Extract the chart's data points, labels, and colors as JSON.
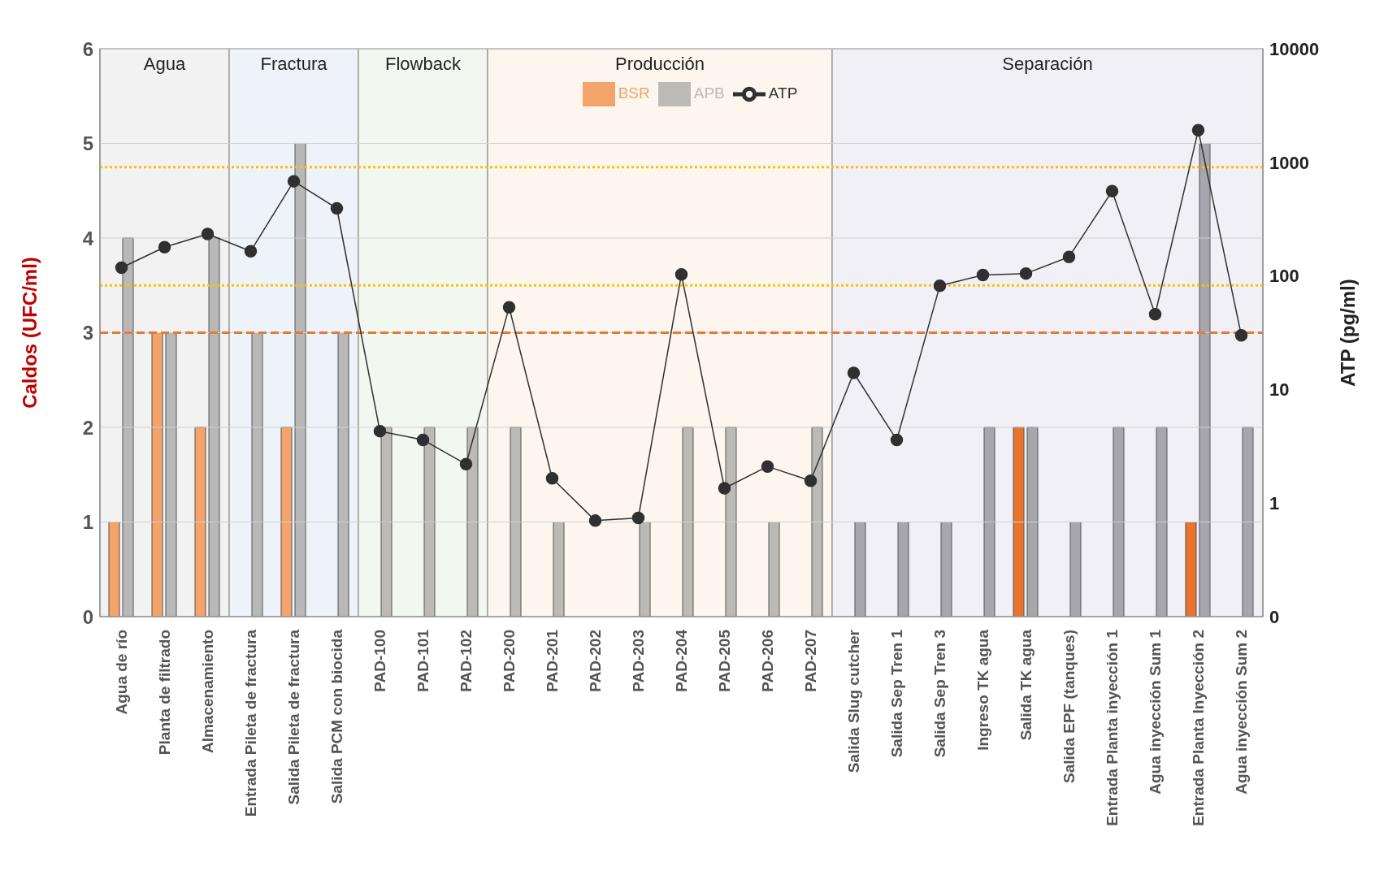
{
  "chart_data": {
    "type": "bar",
    "ylabel": "Caldos (UFC/ml)",
    "y2label": "ATP (pg/ml)",
    "categories": [
      "Agua de río",
      "Planta de filtrado",
      "Almacenamiento",
      "Entrada Pileta de fractura",
      "Salida Pileta de fractura",
      "Salida PCM con biocida",
      "PAD-100",
      "PAD-101",
      "PAD-102",
      "PAD-200",
      "PAD-201",
      "PAD-202",
      "PAD-203",
      "PAD-204",
      "PAD-205",
      "PAD-206",
      "PAD-207",
      "Salida Slug cutcher",
      "Salida Sep Tren 1",
      "Salida Sep Tren 3",
      "Ingreso TK agua",
      "Salida TK agua",
      "Salida EPF (tanques)",
      "Entrada Planta inyección 1",
      "Agua inyección Sum 1",
      "Entrada Planta Inyección 2",
      "Agua inyección Sum 2"
    ],
    "series": [
      {
        "name": "BSR",
        "color": "#f4a46a",
        "colors": [
          "#f4a46a",
          "#f4a46a",
          "#f4a46a",
          "#f4a46a",
          "#f4a46a",
          "#f4a46a",
          "#f4a46a",
          "#f4a46a",
          "#f4a46a",
          "#f4a46a",
          "#f4a46a",
          "#f4a46a",
          "#f4a46a",
          "#f4a46a",
          "#f4a46a",
          "#f4a46a",
          "#f4a46a",
          "#e8742e",
          "#e8742e",
          "#e8742e",
          "#e8742e",
          "#e8742e",
          "#e8742e",
          "#e8742e",
          "#e8742e",
          "#e8742e",
          "#e8742e"
        ],
        "values": [
          1,
          3,
          2,
          null,
          2,
          null,
          null,
          null,
          null,
          null,
          null,
          null,
          null,
          null,
          null,
          null,
          null,
          null,
          null,
          null,
          null,
          2,
          null,
          null,
          null,
          1,
          null
        ]
      },
      {
        "name": "APB",
        "color": "#bdbab5",
        "colors": [
          "#b8b8b8",
          "#b8b8b8",
          "#b8b8b8",
          "#b8b8b8",
          "#b8b8b8",
          "#b8b8b8",
          "#bdbab5",
          "#bdbab5",
          "#bdbab5",
          "#bdbab5",
          "#bdbab5",
          "#bdbab5",
          "#bdbab5",
          "#bdbab5",
          "#bdbab5",
          "#bdbab5",
          "#bdbab5",
          "#a7a5ad",
          "#a7a5ad",
          "#a7a5ad",
          "#a7a5ad",
          "#a7a5ad",
          "#a7a5ad",
          "#a7a5ad",
          "#a7a5ad",
          "#a7a5ad",
          "#a7a5ad"
        ],
        "values": [
          4,
          3,
          4,
          3,
          5,
          3,
          2,
          2,
          2,
          2,
          1,
          null,
          1,
          2,
          2,
          1,
          2,
          1,
          1,
          1,
          2,
          2,
          1,
          2,
          2,
          5,
          2
        ]
      },
      {
        "name": "ATP",
        "type": "line",
        "axis": "y2",
        "color": "#303030",
        "values": [
          118,
          179,
          234,
          165,
          681,
          393,
          4.3,
          3.6,
          2.2,
          53,
          1.65,
          0.7,
          0.74,
          103,
          1.35,
          2.1,
          1.57,
          14,
          3.6,
          82,
          102,
          105,
          147,
          557,
          46,
          1915,
          30
        ]
      }
    ],
    "ylim": [
      0,
      6
    ],
    "yticks": [
      0,
      1,
      2,
      3,
      4,
      5,
      6
    ],
    "y2lim": [
      0.1,
      10000
    ],
    "y2ticks": [
      {
        "value": 0.1,
        "label": "0"
      },
      1,
      10,
      100,
      1000,
      10000
    ],
    "log": "y2",
    "bands": [
      {
        "axis": "x",
        "from": "Agua de río",
        "to": "Almacenamiento",
        "label": "Agua",
        "color": "#f2f2f2"
      },
      {
        "axis": "x",
        "from": "Entrada Pileta de fractura",
        "to": "Salida PCM con biocida",
        "label": "Fractura",
        "color": "#eef3fa"
      },
      {
        "axis": "x",
        "from": "PAD-100",
        "to": "PAD-102",
        "label": "Flowback",
        "color": "#f2f8ef"
      },
      {
        "axis": "x",
        "from": "PAD-200",
        "to": "PAD-207",
        "label": "Producción",
        "color": "#fcf6ef"
      },
      {
        "axis": "x",
        "from": "Salida Slug cutcher",
        "to": "Agua inyección Sum 2",
        "label": "Separación",
        "color": "#f2f0f7"
      }
    ],
    "ref_lines": [
      {
        "axis": "y",
        "value": 3,
        "color": "#e07b39",
        "line_style": "dashed"
      },
      {
        "axis": "y",
        "value": 4.75,
        "color": "#ffc000",
        "line_style": "dotted"
      },
      {
        "axis": "y",
        "value": 3.5,
        "color": "#ffc000",
        "line_style": "dotted"
      }
    ],
    "grid": "y",
    "legend": "top",
    "marker": "circle"
  }
}
